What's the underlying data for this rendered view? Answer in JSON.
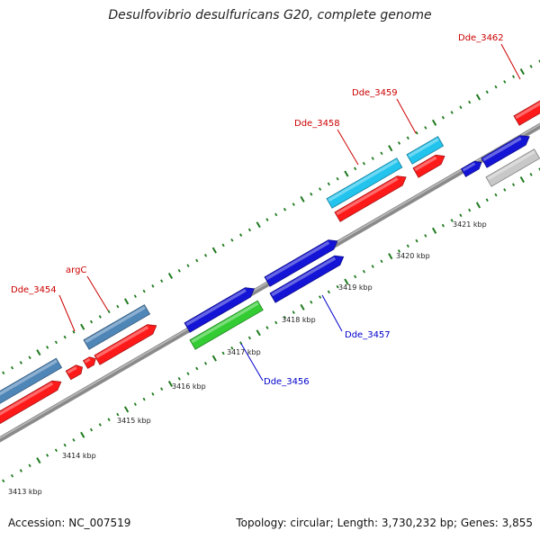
{
  "title": "Desulfovibrio desulfuricans G20, complete genome",
  "accession": "Accession: NC_007519",
  "summary": "Topology: circular; Length: 3,730,232 bp; Genes: 3,855",
  "colors": {
    "background": "#ffffff",
    "backbone": "#8a8a8a",
    "tick": "#1f7a1f",
    "red": "#ff1a1a",
    "blue": "#1414d6",
    "steelblue": "#4f86b8",
    "cyan": "#22c4ee",
    "green": "#33cc33",
    "grey": "#c8c8c8",
    "label_red": "#cc0000",
    "label_blue": "#0000cc"
  },
  "kbp_ticks": [
    "3413 kbp",
    "3414 kbp",
    "3415 kbp",
    "3416 kbp",
    "3417 kbp",
    "3418 kbp",
    "3419 kbp",
    "3420 kbp",
    "3421 kbp"
  ],
  "gene_labels": [
    {
      "text": "Dde_3454",
      "color": "red"
    },
    {
      "text": "argC",
      "color": "red"
    },
    {
      "text": "Dde_3456",
      "color": "blue"
    },
    {
      "text": "Dde_3457",
      "color": "blue"
    },
    {
      "text": "Dde_3458",
      "color": "red"
    },
    {
      "text": "Dde_3459",
      "color": "red"
    },
    {
      "text": "Dde_3462",
      "color": "red"
    }
  ],
  "features": [
    {
      "name": "feature-steelblue-1",
      "color": "steelblue"
    },
    {
      "name": "feature-red-1",
      "color": "red"
    },
    {
      "name": "feature-red-small-1",
      "color": "red"
    },
    {
      "name": "feature-red-small-2",
      "color": "red"
    },
    {
      "name": "feature-steelblue-2",
      "color": "steelblue"
    },
    {
      "name": "feature-red-2",
      "color": "red"
    },
    {
      "name": "feature-blue-1",
      "color": "blue"
    },
    {
      "name": "feature-green-1",
      "color": "green"
    },
    {
      "name": "feature-blue-2",
      "color": "blue"
    },
    {
      "name": "feature-blue-3",
      "color": "blue"
    },
    {
      "name": "feature-cyan-1",
      "color": "cyan"
    },
    {
      "name": "feature-red-3",
      "color": "red"
    },
    {
      "name": "feature-cyan-2",
      "color": "cyan"
    },
    {
      "name": "feature-red-4",
      "color": "red"
    },
    {
      "name": "feature-blue-small-1",
      "color": "blue"
    },
    {
      "name": "feature-blue-4",
      "color": "blue"
    },
    {
      "name": "feature-grey-1",
      "color": "grey"
    },
    {
      "name": "feature-red-5",
      "color": "red"
    }
  ]
}
